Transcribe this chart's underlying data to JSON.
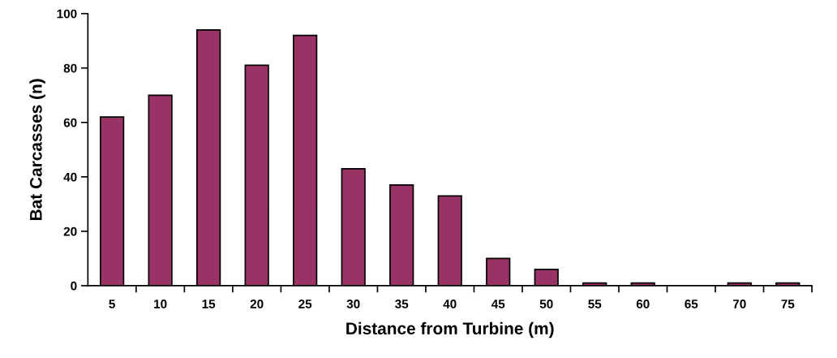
{
  "chart_data": {
    "type": "bar",
    "xlabel": "Distance from Turbine (m)",
    "ylabel": "Bat Carcasses (n)",
    "categories": [
      "5",
      "10",
      "15",
      "20",
      "25",
      "30",
      "35",
      "40",
      "45",
      "50",
      "55",
      "60",
      "65",
      "70",
      "75"
    ],
    "values": [
      62,
      70,
      94,
      81,
      92,
      43,
      37,
      33,
      10,
      6,
      1,
      1,
      0,
      1,
      1
    ],
    "color": "#993366",
    "ylim": [
      0,
      100
    ],
    "yticks": [
      0,
      20,
      40,
      60,
      80,
      100
    ],
    "grid": false,
    "legend": false
  }
}
